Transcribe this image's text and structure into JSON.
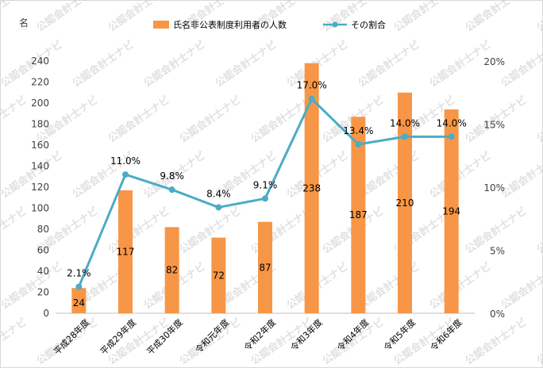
{
  "chart_data": {
    "type": "bar",
    "categories": [
      "平成28年度",
      "平成29年度",
      "平成30年度",
      "令和元年度",
      "令和2年度",
      "令和3年度",
      "令和4年度",
      "令和5年度",
      "令和6年度"
    ],
    "y_left_unit": "名",
    "ylim_left": [
      0,
      240
    ],
    "yticks_left": [
      "0",
      "20",
      "40",
      "60",
      "80",
      "100",
      "120",
      "140",
      "160",
      "180",
      "200",
      "220",
      "240"
    ],
    "ylim_right": [
      0,
      20
    ],
    "yticks_right": [
      "0%",
      "5%",
      "10%",
      "15%",
      "20%"
    ],
    "series": [
      {
        "name": "氏名非公表制度利用者の人数",
        "kind": "bar",
        "axis": "left",
        "color": "#f79646",
        "values": [
          24,
          117,
          82,
          72,
          87,
          238,
          187,
          210,
          194
        ],
        "labels": [
          "24",
          "117",
          "82",
          "72",
          "87",
          "238",
          "187",
          "210",
          "194"
        ]
      },
      {
        "name": "その割合",
        "kind": "line",
        "axis": "right",
        "color": "#4bacc6",
        "values": [
          2.1,
          11.0,
          9.8,
          8.4,
          9.1,
          17.0,
          13.4,
          14.0,
          14.0
        ],
        "labels": [
          "2.1%",
          "11.0%",
          "9.8%",
          "8.4%",
          "9.1%",
          "17.0%",
          "13.4%",
          "14.0%",
          "14.0%"
        ]
      }
    ],
    "legend": "top-center",
    "grid": false
  },
  "watermark": "公認会計士ナビ"
}
